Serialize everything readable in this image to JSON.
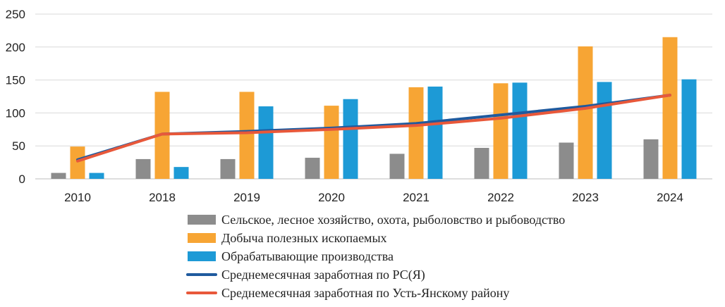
{
  "chart_data": {
    "type": "bar",
    "title": "",
    "xlabel": "",
    "ylabel": "",
    "ylim": [
      0,
      250
    ],
    "yticks": [
      "0",
      "50",
      "100",
      "150",
      "200",
      "250"
    ],
    "grid": true,
    "legend_position": "bottom",
    "categories": [
      "2010",
      "2018",
      "2019",
      "2020",
      "2021",
      "2022",
      "2023",
      "2024"
    ],
    "series": [
      {
        "name": "Сельское, лесное хозяйство, охота, рыболовство и рыбоводство",
        "kind": "bar",
        "color": "#8c8c8c",
        "values": [
          9,
          30,
          30,
          32,
          38,
          47,
          55,
          60
        ]
      },
      {
        "name": "Добыча полезных ископаемых",
        "kind": "bar",
        "color": "#f7a534",
        "values": [
          49,
          132,
          132,
          111,
          139,
          145,
          201,
          215
        ]
      },
      {
        "name": "Обрабатывающие производства",
        "kind": "bar",
        "color": "#1d9ad6",
        "values": [
          9,
          18,
          110,
          121,
          140,
          146,
          147,
          151
        ]
      },
      {
        "name": "Среднемесячная заработная по РС(Я)",
        "kind": "line",
        "color": "#1f5a9e",
        "values": [
          29,
          68,
          72,
          77,
          84,
          97,
          110,
          127
        ]
      },
      {
        "name": "Среднемесячная заработная по Усть-Янскому району",
        "kind": "line",
        "color": "#e8583a",
        "values": [
          27,
          68,
          70,
          75,
          81,
          92,
          107,
          127
        ]
      }
    ]
  }
}
